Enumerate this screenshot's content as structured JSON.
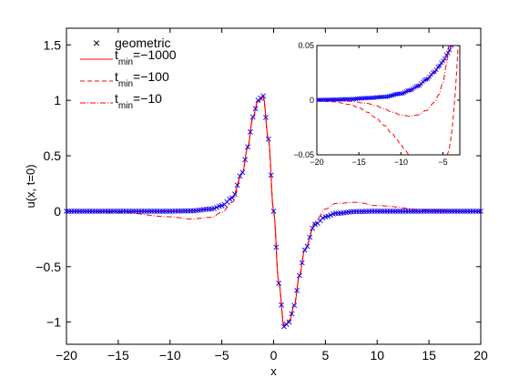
{
  "chart_data": [
    {
      "type": "line",
      "title": "",
      "xlabel": "x",
      "ylabel": "u(x, t=0)",
      "xlim": [
        -20,
        20
      ],
      "ylim": [
        -1.2,
        1.65
      ],
      "xticks": [
        -20,
        -15,
        -10,
        -5,
        0,
        5,
        10,
        15,
        20
      ],
      "xtick_labels": [
        "−20",
        "−15",
        "−10",
        "−5",
        "0",
        "5",
        "10",
        "15",
        "20"
      ],
      "yticks": [
        -1,
        -0.5,
        0,
        0.5,
        1,
        1.5
      ],
      "ytick_labels": [
        "−1",
        "−0.5",
        "0",
        "0.5",
        "1",
        "1.5"
      ],
      "legend_position": "top-left",
      "grid": false,
      "series": [
        {
          "name": "geometric",
          "style": "markers-x",
          "color": "#0000ff"
        },
        {
          "name_main": "t",
          "name_sub": "min",
          "name_rest": "=−1000",
          "style": "solid",
          "color": "#ff0000"
        },
        {
          "name_main": "t",
          "name_sub": "min",
          "name_rest": "=−100",
          "style": "dashed",
          "color": "#ff0000"
        },
        {
          "name_main": "t",
          "name_sub": "min",
          "name_rest": "=−10",
          "style": "dashdot",
          "color": "#ff0000"
        }
      ],
      "points": {
        "x": [
          -20,
          -15,
          -10,
          -8,
          -6,
          -5,
          -4,
          -3,
          -2.5,
          -2,
          -1.5,
          -1,
          -0.5,
          0,
          0.5,
          1,
          1.5,
          2,
          2.5,
          3,
          4,
          5,
          6,
          8,
          10,
          15,
          20
        ],
        "geometric": [
          0,
          0,
          0,
          0.003,
          0.02,
          0.05,
          0.12,
          0.35,
          0.58,
          0.85,
          1.0,
          1.04,
          0.65,
          0,
          -0.65,
          -1.04,
          -1.0,
          -0.85,
          -0.58,
          -0.35,
          -0.12,
          -0.05,
          -0.02,
          -0.003,
          0,
          0,
          0
        ],
        "tmin_m10": [
          0,
          -0.01,
          -0.05,
          -0.07,
          -0.055,
          -0.01,
          0.08,
          0.35,
          0.58,
          0.85,
          1.0,
          1.03,
          0.65,
          0,
          -0.65,
          -1.03,
          -1.0,
          -0.85,
          -0.58,
          -0.35,
          -0.1,
          0.02,
          0.07,
          0.08,
          0.05,
          0.01,
          0
        ]
      }
    },
    {
      "type": "line",
      "title": "",
      "inset": true,
      "xlim": [
        -20,
        -3
      ],
      "ylim": [
        -0.05,
        0.05
      ],
      "xticks": [
        -20,
        -15,
        -10,
        -5
      ],
      "xtick_labels": [
        "−20",
        "−15",
        "−10",
        "−5"
      ],
      "yticks": [
        -0.05,
        0,
        0.05
      ],
      "ytick_labels": [
        "−0.05",
        "0",
        "0.05"
      ],
      "points": {
        "x": [
          -20,
          -18,
          -16,
          -14,
          -12,
          -10,
          -9,
          -8,
          -7,
          -6,
          -5.5,
          -5,
          -4.5,
          -4.2,
          -4
        ],
        "geometric": [
          0.0003,
          0.0005,
          0.001,
          0.002,
          0.003,
          0.006,
          0.009,
          0.013,
          0.019,
          0.026,
          0.031,
          0.036,
          0.042,
          0.046,
          0.05
        ],
        "tmin_m1000": [
          0.0002,
          0.0004,
          0.0008,
          0.0015,
          0.0025,
          0.005,
          0.008,
          0.012,
          0.018,
          0.025,
          0.03,
          0.035,
          0.041,
          0.045,
          0.05
        ],
        "tmin_m100_x": [
          -20,
          -18,
          -16,
          -15,
          -14,
          -13,
          -12,
          -11,
          -10.5,
          -10,
          -9.5,
          -9
        ],
        "tmin_m100": [
          -0.0005,
          -0.0015,
          -0.004,
          -0.007,
          -0.011,
          -0.016,
          -0.023,
          -0.031,
          -0.036,
          -0.041,
          -0.046,
          -0.05
        ],
        "tmin_m10_x": [
          -20,
          -18,
          -16,
          -14,
          -13,
          -12,
          -11,
          -10,
          -9,
          -8,
          -7,
          -6,
          -5.5,
          -5,
          -4.6,
          -4.3
        ],
        "tmin_m10": [
          0.0001,
          -0.0003,
          -0.001,
          -0.003,
          -0.005,
          -0.008,
          -0.011,
          -0.0135,
          -0.0145,
          -0.0135,
          -0.0095,
          -0.002,
          0.005,
          0.016,
          0.032,
          0.05
        ]
      }
    }
  ]
}
